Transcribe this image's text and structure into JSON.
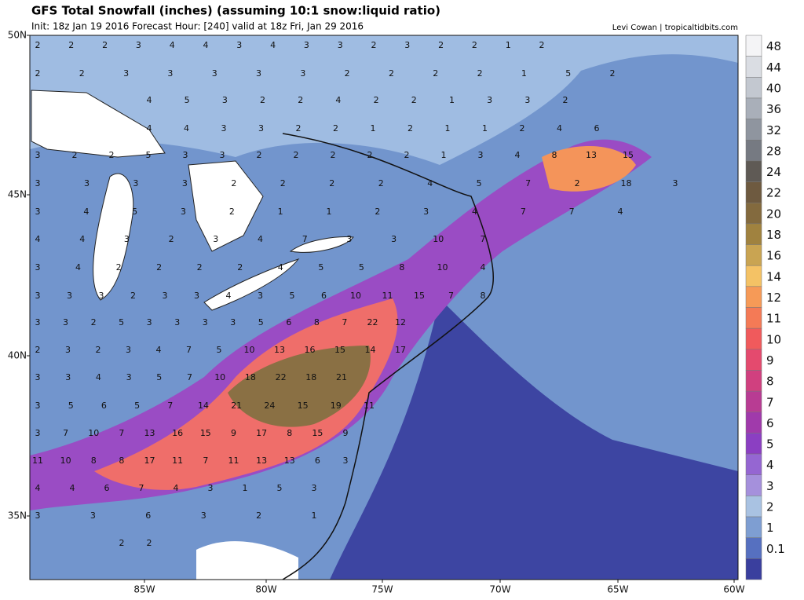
{
  "header": {
    "title": "GFS Total Snowfall (inches) (assuming 10:1 snow:liquid ratio)",
    "subtitle": "Init: 18z Jan 19 2016   Forecast Hour: [240]   valid at 18z Fri, Jan 29 2016",
    "credit": "Levi Cowan | tropicaltidbits.com"
  },
  "map": {
    "lat_labels": [
      "50N",
      "45N",
      "40N",
      "35N"
    ],
    "lon_labels": [
      "85W",
      "80W",
      "75W",
      "70W",
      "65W",
      "60W"
    ],
    "point_rows": [
      [
        "2",
        "2",
        "2",
        "3",
        "4",
        "4",
        "3",
        "4",
        "3",
        "3",
        "2",
        "3",
        "2",
        "2",
        "1",
        "2"
      ],
      [
        "2",
        "2",
        "3",
        "3",
        "3",
        "3",
        "3",
        "2",
        "2",
        "2",
        "2",
        "1",
        "5",
        "2"
      ],
      [
        "4",
        "5",
        "3",
        "2",
        "2",
        "4",
        "2",
        "2",
        "1",
        "3",
        "3",
        "2"
      ],
      [
        "4",
        "4",
        "3",
        "3",
        "2",
        "2",
        "1",
        "2",
        "1",
        "1",
        "2",
        "4",
        "6"
      ],
      [
        "3",
        "2",
        "2",
        "5",
        "3",
        "3",
        "2",
        "2",
        "2",
        "2",
        "2",
        "1",
        "3",
        "4",
        "8",
        "13",
        "15"
      ],
      [
        "3",
        "3",
        "3",
        "3",
        "2",
        "2",
        "2",
        "2",
        "4",
        "5",
        "7",
        "2",
        "18",
        "3"
      ],
      [
        "3",
        "4",
        "5",
        "3",
        "2",
        "1",
        "1",
        "2",
        "3",
        "4",
        "7",
        "7",
        "4"
      ],
      [
        "4",
        "4",
        "3",
        "2",
        "3",
        "4",
        "7",
        "3",
        "3",
        "10",
        "7"
      ],
      [
        "3",
        "4",
        "2",
        "2",
        "2",
        "2",
        "4",
        "5",
        "5",
        "8",
        "10",
        "4"
      ],
      [
        "3",
        "3",
        "3",
        "2",
        "3",
        "3",
        "4",
        "3",
        "5",
        "6",
        "10",
        "11",
        "15",
        "7",
        "8"
      ],
      [
        "3",
        "3",
        "2",
        "5",
        "3",
        "3",
        "3",
        "3",
        "5",
        "6",
        "8",
        "7",
        "22",
        "12"
      ],
      [
        "2",
        "3",
        "2",
        "3",
        "4",
        "7",
        "5",
        "10",
        "13",
        "16",
        "15",
        "14",
        "17"
      ],
      [
        "3",
        "3",
        "4",
        "3",
        "5",
        "7",
        "10",
        "18",
        "22",
        "18",
        "21"
      ],
      [
        "3",
        "5",
        "6",
        "5",
        "7",
        "14",
        "21",
        "24",
        "15",
        "19",
        "11"
      ],
      [
        "3",
        "7",
        "10",
        "7",
        "13",
        "16",
        "15",
        "9",
        "17",
        "8",
        "15",
        "9"
      ],
      [
        "11",
        "10",
        "8",
        "8",
        "17",
        "11",
        "7",
        "11",
        "13",
        "13",
        "6",
        "3"
      ],
      [
        "4",
        "4",
        "6",
        "7",
        "4",
        "3",
        "1",
        "5",
        "3"
      ],
      [
        "3",
        "3",
        "6",
        "3",
        "2",
        "1"
      ],
      [
        "2",
        "2"
      ]
    ]
  },
  "legend": {
    "top_color": "#f4f4f6",
    "items": [
      {
        "label": "48",
        "color": "#dadde3"
      },
      {
        "label": "44",
        "color": "#c3c8d0"
      },
      {
        "label": "40",
        "color": "#a9afb9"
      },
      {
        "label": "36",
        "color": "#8f959f"
      },
      {
        "label": "32",
        "color": "#767a82"
      },
      {
        "label": "28",
        "color": "#5f5a55"
      },
      {
        "label": "24",
        "color": "#6e5a40"
      },
      {
        "label": "22",
        "color": "#836a3e"
      },
      {
        "label": "20",
        "color": "#a0823f"
      },
      {
        "label": "18",
        "color": "#c9a452"
      },
      {
        "label": "16",
        "color": "#f4c265"
      },
      {
        "label": "14",
        "color": "#f69a57"
      },
      {
        "label": "12",
        "color": "#f47a56"
      },
      {
        "label": "11",
        "color": "#f05a5c"
      },
      {
        "label": "10",
        "color": "#e44a6e"
      },
      {
        "label": "9",
        "color": "#d0407f"
      },
      {
        "label": "8",
        "color": "#b83c93"
      },
      {
        "label": "7",
        "color": "#a03aab"
      },
      {
        "label": "6",
        "color": "#8b3fc2"
      },
      {
        "label": "5",
        "color": "#9566d2"
      },
      {
        "label": "4",
        "color": "#a590dc"
      },
      {
        "label": "3",
        "color": "#a9c2e2"
      },
      {
        "label": "2",
        "color": "#7e9ed2"
      },
      {
        "label": "1",
        "color": "#5670c0"
      },
      {
        "label": "0.1",
        "color": "#3a3f9e"
      }
    ]
  }
}
